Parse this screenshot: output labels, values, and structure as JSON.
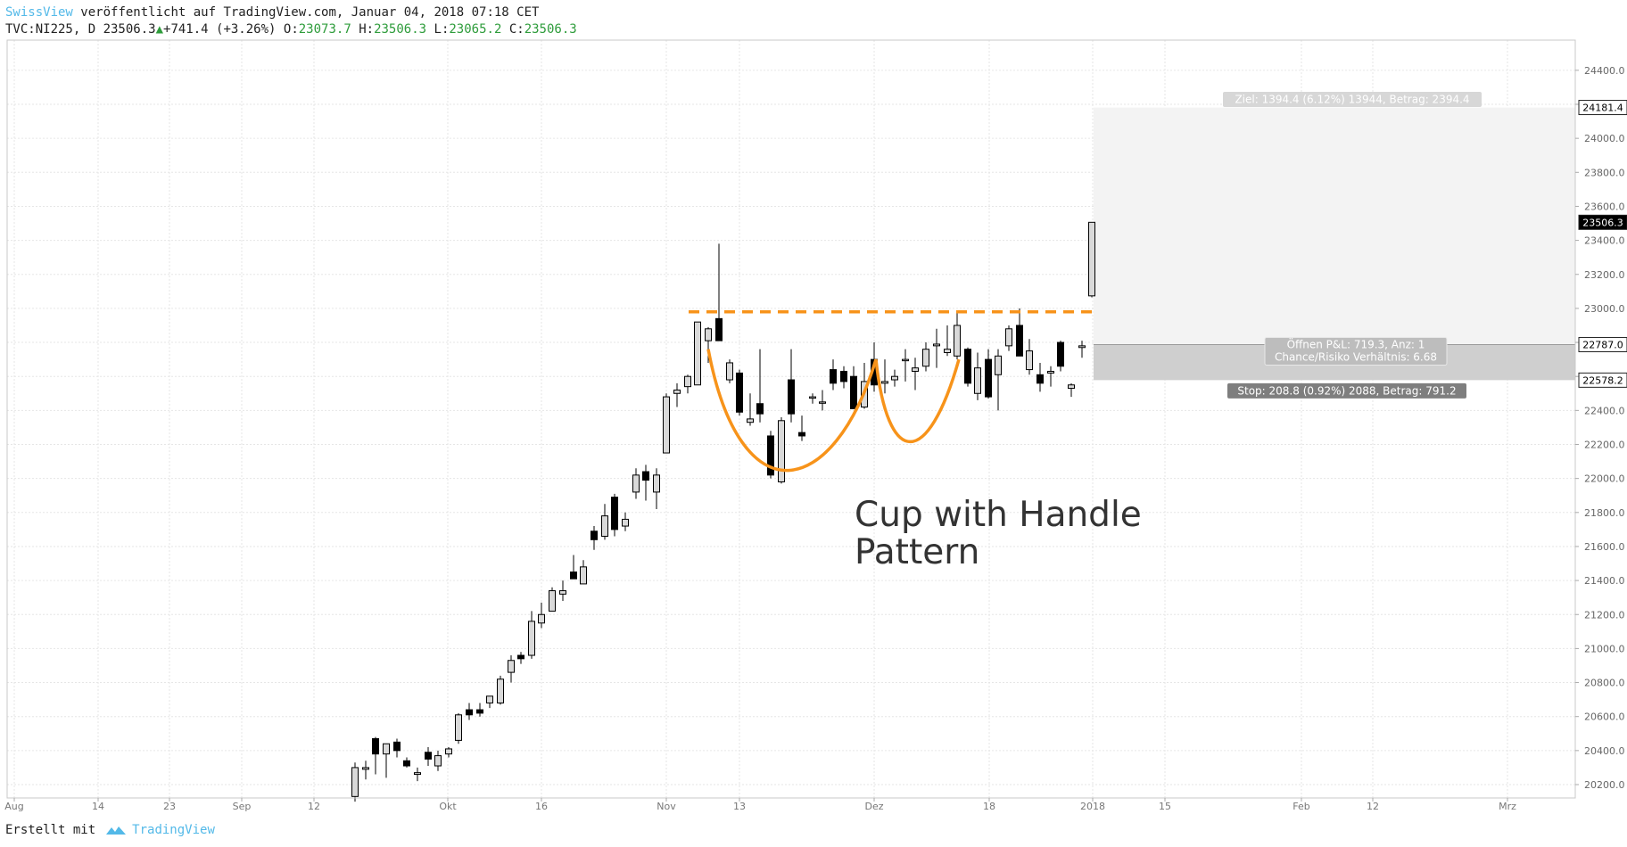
{
  "header": {
    "publisher": "SwissView",
    "published_text": "veröffentlicht auf TradingView.com, Januar 04, 2018 07:18 CET",
    "symbol_line": "TVC:NI225, D 23506.3",
    "change": "+741.4 (+3.26%)",
    "open_label": "O:",
    "open": "23073.7",
    "high_label": "H:",
    "high": "23506.3",
    "low_label": "L:",
    "low": "23065.2",
    "close_label": "C:",
    "close": "23506.3"
  },
  "footer": {
    "created_with": "Erstellt mit",
    "brand": "TradingView"
  },
  "colors": {
    "accent": "#53b9e8",
    "pattern": "#f7931a",
    "up_candle": "#d9d9d9",
    "down_candle": "#000000",
    "grid": "#e3e3e3"
  },
  "chart_data": {
    "type": "candlestick",
    "symbol": "TVC:NI225",
    "interval": "D",
    "ylim": [
      20100,
      24650
    ],
    "y_ticks": [
      20200,
      20400,
      20600,
      20800,
      21000,
      21200,
      21400,
      21600,
      21800,
      22000,
      22200,
      22400,
      22600,
      22800,
      23000,
      23200,
      23400,
      23600,
      23800,
      24000,
      24200,
      24400
    ],
    "x_ticks": [
      {
        "label": "Aug",
        "x": 16
      },
      {
        "label": "14",
        "x": 110
      },
      {
        "label": "23",
        "x": 190
      },
      {
        "label": "Sep",
        "x": 271
      },
      {
        "label": "12",
        "x": 352
      },
      {
        "label": "Okt",
        "x": 502
      },
      {
        "label": "16",
        "x": 607
      },
      {
        "label": "Nov",
        "x": 747
      },
      {
        "label": "13",
        "x": 829
      },
      {
        "label": "Dez",
        "x": 980
      },
      {
        "label": "18",
        "x": 1109
      },
      {
        "label": "2018",
        "x": 1225
      },
      {
        "label": "15",
        "x": 1306
      },
      {
        "label": "Feb",
        "x": 1459
      },
      {
        "label": "12",
        "x": 1539
      },
      {
        "label": "Mrz",
        "x": 1690
      }
    ],
    "candles": [
      {
        "x": 398,
        "o": 20130,
        "h": 20330,
        "l": 20100,
        "c": 20300
      },
      {
        "x": 410,
        "o": 20290,
        "h": 20340,
        "l": 20230,
        "c": 20300
      },
      {
        "x": 421,
        "o": 20470,
        "h": 20480,
        "l": 20260,
        "c": 20380
      },
      {
        "x": 433,
        "o": 20380,
        "h": 20440,
        "l": 20240,
        "c": 20440
      },
      {
        "x": 445,
        "o": 20450,
        "h": 20470,
        "l": 20360,
        "c": 20400
      },
      {
        "x": 456,
        "o": 20340,
        "h": 20360,
        "l": 20300,
        "c": 20310
      },
      {
        "x": 468,
        "o": 20260,
        "h": 20300,
        "l": 20220,
        "c": 20270
      },
      {
        "x": 480,
        "o": 20390,
        "h": 20420,
        "l": 20310,
        "c": 20350
      },
      {
        "x": 491,
        "o": 20310,
        "h": 20400,
        "l": 20280,
        "c": 20370
      },
      {
        "x": 503,
        "o": 20380,
        "h": 20420,
        "l": 20360,
        "c": 20410
      },
      {
        "x": 514,
        "o": 20460,
        "h": 20620,
        "l": 20440,
        "c": 20610
      },
      {
        "x": 526,
        "o": 20640,
        "h": 20680,
        "l": 20580,
        "c": 20610
      },
      {
        "x": 538,
        "o": 20640,
        "h": 20680,
        "l": 20600,
        "c": 20620
      },
      {
        "x": 549,
        "o": 20680,
        "h": 20720,
        "l": 20650,
        "c": 20720
      },
      {
        "x": 561,
        "o": 20680,
        "h": 20840,
        "l": 20670,
        "c": 20820
      },
      {
        "x": 573,
        "o": 20860,
        "h": 20960,
        "l": 20800,
        "c": 20930
      },
      {
        "x": 584,
        "o": 20960,
        "h": 20980,
        "l": 20910,
        "c": 20940
      },
      {
        "x": 596,
        "o": 20960,
        "h": 21220,
        "l": 20940,
        "c": 21160
      },
      {
        "x": 607,
        "o": 21150,
        "h": 21270,
        "l": 21120,
        "c": 21200
      },
      {
        "x": 619,
        "o": 21220,
        "h": 21360,
        "l": 21220,
        "c": 21340
      },
      {
        "x": 631,
        "o": 21320,
        "h": 21400,
        "l": 21280,
        "c": 21340
      },
      {
        "x": 643,
        "o": 21450,
        "h": 21550,
        "l": 21410,
        "c": 21410
      },
      {
        "x": 654,
        "o": 21380,
        "h": 21520,
        "l": 21380,
        "c": 21480
      },
      {
        "x": 666,
        "o": 21690,
        "h": 21720,
        "l": 21580,
        "c": 21640
      },
      {
        "x": 678,
        "o": 21660,
        "h": 21850,
        "l": 21640,
        "c": 21780
      },
      {
        "x": 689,
        "o": 21890,
        "h": 21910,
        "l": 21660,
        "c": 21700
      },
      {
        "x": 701,
        "o": 21720,
        "h": 21800,
        "l": 21690,
        "c": 21760
      },
      {
        "x": 713,
        "o": 21920,
        "h": 22060,
        "l": 21880,
        "c": 22020
      },
      {
        "x": 724,
        "o": 22040,
        "h": 22080,
        "l": 21870,
        "c": 21990
      },
      {
        "x": 736,
        "o": 21920,
        "h": 22060,
        "l": 21820,
        "c": 22020
      },
      {
        "x": 747,
        "o": 22150,
        "h": 22500,
        "l": 22150,
        "c": 22480
      },
      {
        "x": 759,
        "o": 22500,
        "h": 22560,
        "l": 22420,
        "c": 22520
      },
      {
        "x": 771,
        "o": 22540,
        "h": 22610,
        "l": 22500,
        "c": 22600
      },
      {
        "x": 782,
        "o": 22550,
        "h": 22920,
        "l": 22550,
        "c": 22920
      },
      {
        "x": 794,
        "o": 22810,
        "h": 22890,
        "l": 22680,
        "c": 22880
      },
      {
        "x": 806,
        "o": 22940,
        "h": 23380,
        "l": 22810,
        "c": 22810
      },
      {
        "x": 818,
        "o": 22580,
        "h": 22700,
        "l": 22560,
        "c": 22680
      },
      {
        "x": 829,
        "o": 22620,
        "h": 22640,
        "l": 22370,
        "c": 22390
      },
      {
        "x": 841,
        "o": 22330,
        "h": 22500,
        "l": 22310,
        "c": 22350
      },
      {
        "x": 852,
        "o": 22440,
        "h": 22760,
        "l": 22330,
        "c": 22380
      },
      {
        "x": 864,
        "o": 22250,
        "h": 22280,
        "l": 22000,
        "c": 22020
      },
      {
        "x": 876,
        "o": 21980,
        "h": 22360,
        "l": 21970,
        "c": 22340
      },
      {
        "x": 887,
        "o": 22580,
        "h": 22760,
        "l": 22330,
        "c": 22380
      },
      {
        "x": 899,
        "o": 22270,
        "h": 22370,
        "l": 22220,
        "c": 22250
      },
      {
        "x": 911,
        "o": 22480,
        "h": 22500,
        "l": 22440,
        "c": 22480
      },
      {
        "x": 922,
        "o": 22450,
        "h": 22520,
        "l": 22400,
        "c": 22450
      },
      {
        "x": 934,
        "o": 22640,
        "h": 22700,
        "l": 22520,
        "c": 22560
      },
      {
        "x": 946,
        "o": 22630,
        "h": 22660,
        "l": 22530,
        "c": 22570
      },
      {
        "x": 957,
        "o": 22600,
        "h": 22660,
        "l": 22410,
        "c": 22410
      },
      {
        "x": 969,
        "o": 22420,
        "h": 22680,
        "l": 22410,
        "c": 22570
      },
      {
        "x": 980,
        "o": 22700,
        "h": 22800,
        "l": 22510,
        "c": 22550
      },
      {
        "x": 992,
        "o": 22560,
        "h": 22700,
        "l": 22500,
        "c": 22570
      },
      {
        "x": 1003,
        "o": 22580,
        "h": 22640,
        "l": 22540,
        "c": 22600
      },
      {
        "x": 1015,
        "o": 22700,
        "h": 22760,
        "l": 22570,
        "c": 22700
      },
      {
        "x": 1026,
        "o": 22630,
        "h": 22710,
        "l": 22520,
        "c": 22650
      },
      {
        "x": 1038,
        "o": 22660,
        "h": 22800,
        "l": 22630,
        "c": 22760
      },
      {
        "x": 1050,
        "o": 22780,
        "h": 22880,
        "l": 22650,
        "c": 22790
      },
      {
        "x": 1062,
        "o": 22740,
        "h": 22900,
        "l": 22720,
        "c": 22760
      },
      {
        "x": 1073,
        "o": 22720,
        "h": 22980,
        "l": 22700,
        "c": 22900
      },
      {
        "x": 1085,
        "o": 22760,
        "h": 22770,
        "l": 22540,
        "c": 22560
      },
      {
        "x": 1096,
        "o": 22500,
        "h": 22740,
        "l": 22460,
        "c": 22650
      },
      {
        "x": 1108,
        "o": 22700,
        "h": 22760,
        "l": 22470,
        "c": 22480
      },
      {
        "x": 1119,
        "o": 22610,
        "h": 22760,
        "l": 22400,
        "c": 22720
      },
      {
        "x": 1131,
        "o": 22780,
        "h": 22900,
        "l": 22750,
        "c": 22880
      },
      {
        "x": 1143,
        "o": 22900,
        "h": 23000,
        "l": 22720,
        "c": 22720
      },
      {
        "x": 1154,
        "o": 22640,
        "h": 22820,
        "l": 22610,
        "c": 22750
      },
      {
        "x": 1166,
        "o": 22610,
        "h": 22680,
        "l": 22510,
        "c": 22560
      },
      {
        "x": 1178,
        "o": 22620,
        "h": 22660,
        "l": 22540,
        "c": 22630
      },
      {
        "x": 1189,
        "o": 22800,
        "h": 22810,
        "l": 22630,
        "c": 22660
      },
      {
        "x": 1201,
        "o": 22530,
        "h": 22560,
        "l": 22480,
        "c": 22550
      },
      {
        "x": 1213,
        "o": 22770,
        "h": 22810,
        "l": 22710,
        "c": 22780
      },
      {
        "x": 1224,
        "o": 23073.7,
        "h": 23506.3,
        "l": 23065.2,
        "c": 23506.3
      }
    ],
    "resistance_line": {
      "value": 22980,
      "color": "#f7931a",
      "style": "dashed"
    },
    "annotation": {
      "text": [
        "Cup with Handle",
        "Pattern"
      ]
    },
    "position": {
      "entry": 22787.0,
      "target": 24181.4,
      "stop": 22578.2,
      "target_label": "Ziel: 1394.4 (6.12%) 13944, Betrag: 2394.4",
      "pnl_label": "Öffnen P&L: 719.3, Anz: 1",
      "ratio_label": "Chance/Risiko Verhältnis: 6.68",
      "stop_label": "Stop: 208.8 (0.92%) 2088, Betrag: 791.2"
    },
    "price_tags": [
      {
        "label": "24181.4",
        "value": 24181.4,
        "style": "box"
      },
      {
        "label": "23506.3",
        "value": 23506.3,
        "style": "dark"
      },
      {
        "label": "22787.0",
        "value": 22787.0,
        "style": "box"
      },
      {
        "label": "22578.2",
        "value": 22578.2,
        "style": "box"
      }
    ]
  }
}
